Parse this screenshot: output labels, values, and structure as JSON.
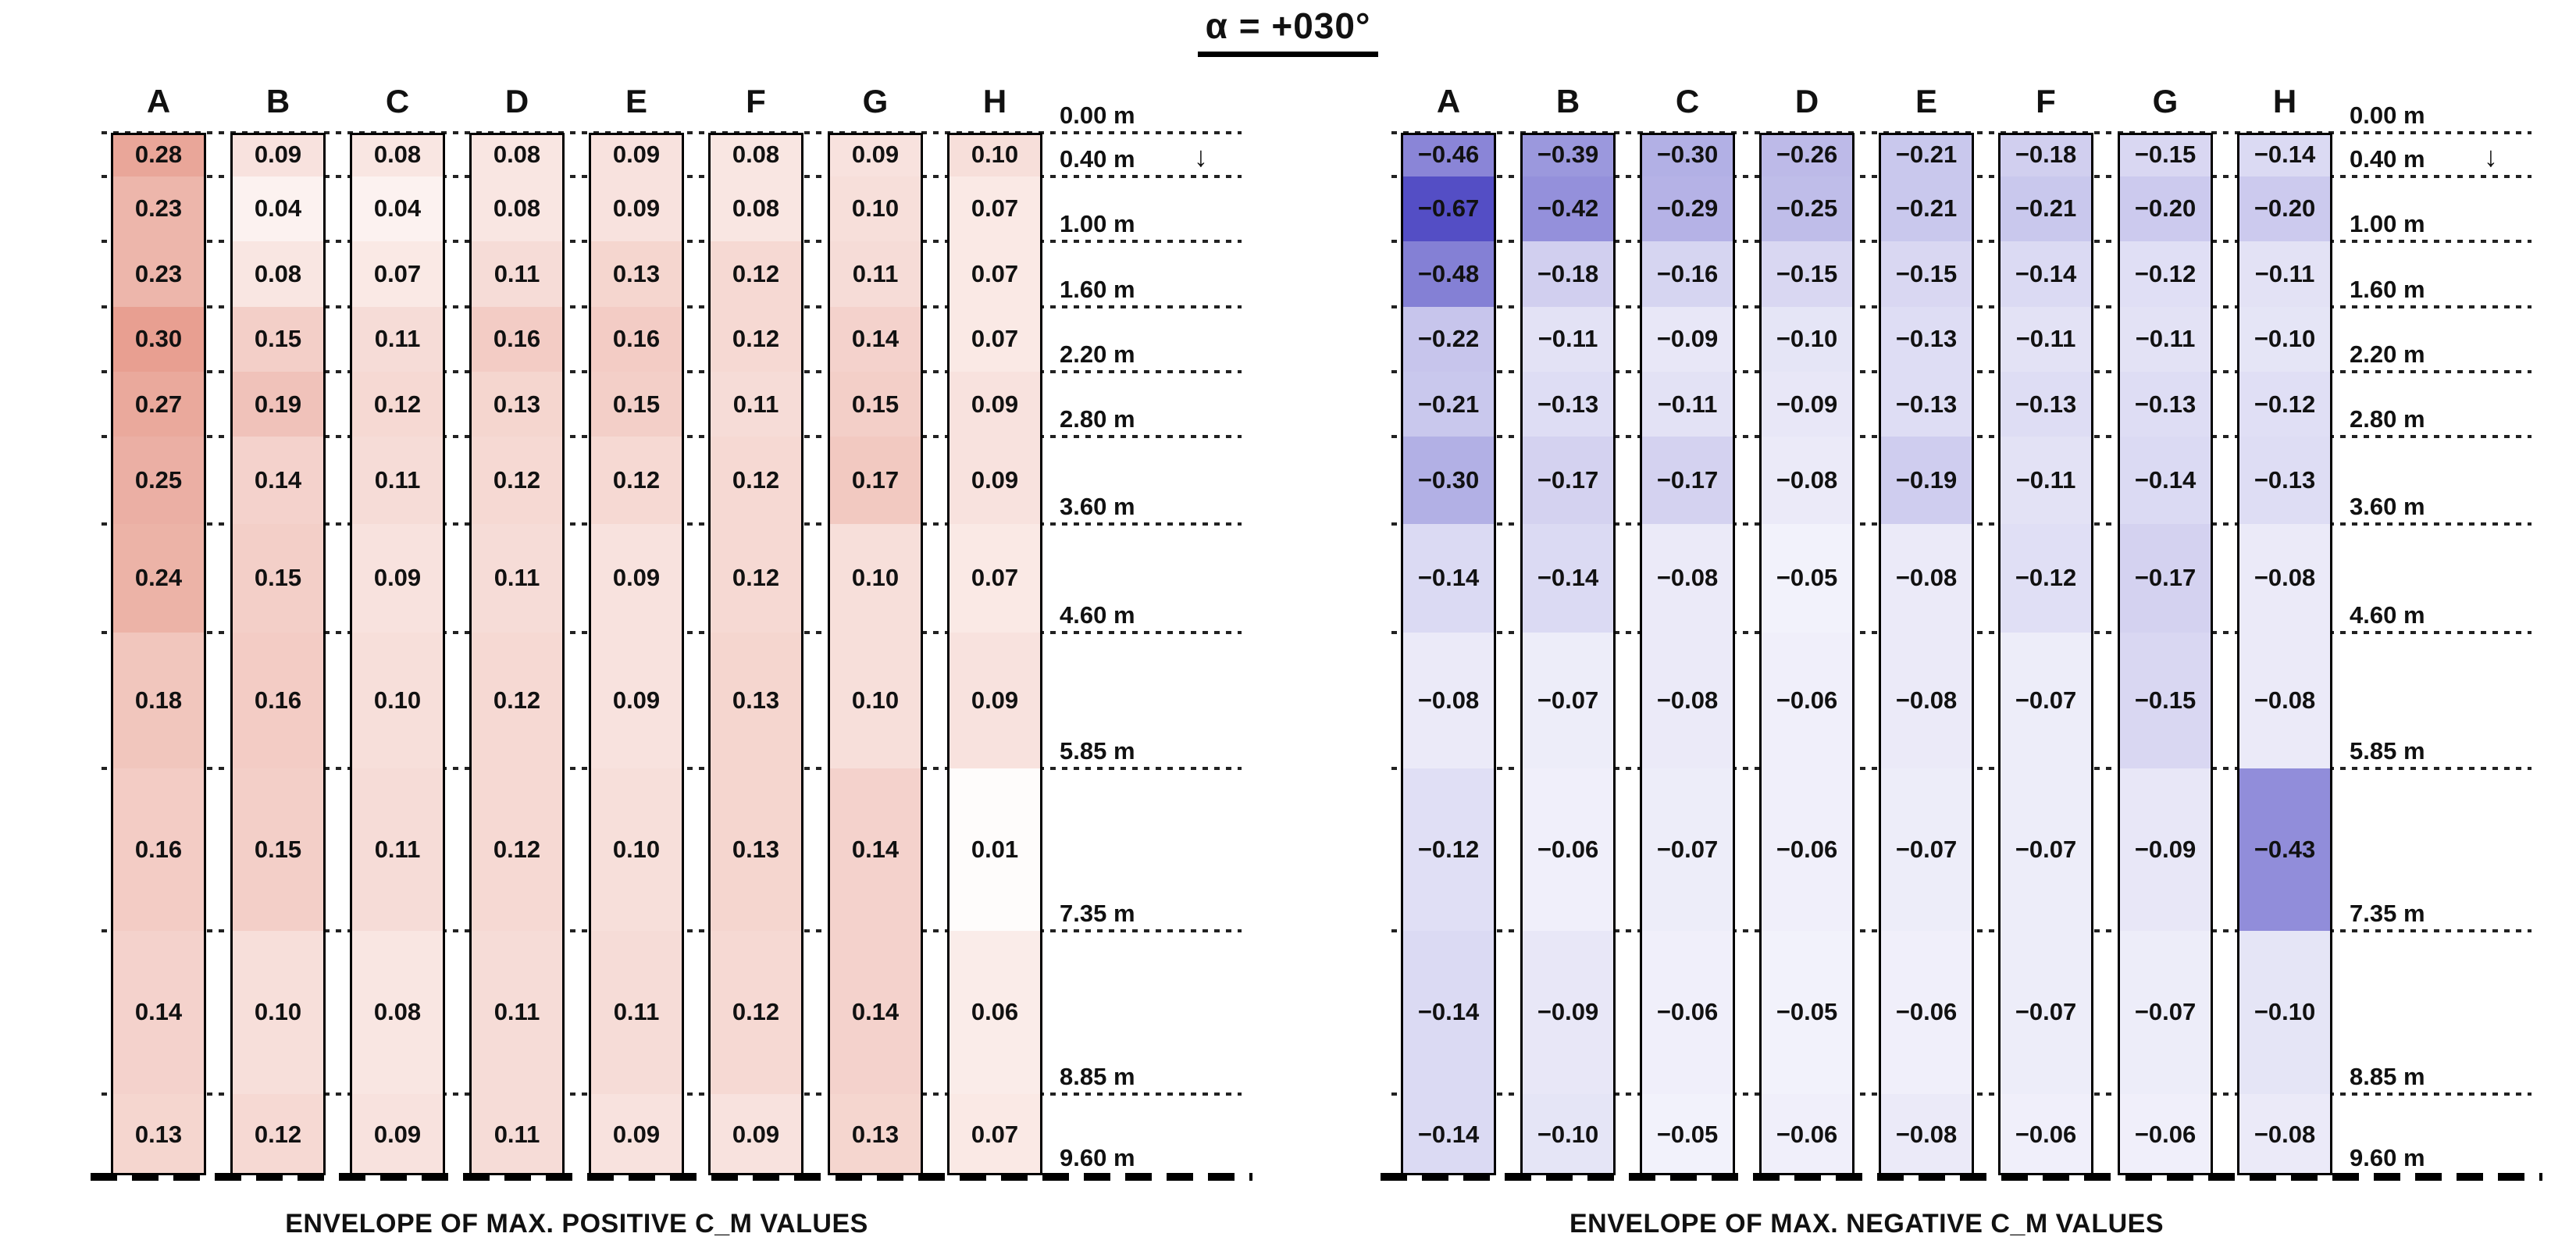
{
  "title": "α = +030°",
  "arrow_icon": "↓",
  "chart_data": [
    {
      "type": "heatmap",
      "id": "positive-envelope",
      "title": "ENVELOPE OF MAX. POSITIVE C_M VALUES",
      "categories": [
        "A",
        "B",
        "C",
        "D",
        "E",
        "F",
        "G",
        "H"
      ],
      "depths_m": [
        0.0,
        0.4,
        1.0,
        1.6,
        2.2,
        2.8,
        3.6,
        4.6,
        5.85,
        7.35,
        8.85,
        9.6
      ],
      "depth_labels": [
        "0.00 m",
        "0.40 m",
        "1.00 m",
        "1.60 m",
        "2.20 m",
        "2.80 m",
        "3.60 m",
        "4.60 m",
        "5.85 m",
        "7.35 m",
        "8.85 m",
        "9.60 m"
      ],
      "color_scale": {
        "max_color": "#e6998a",
        "max_abs_value": 0.32,
        "min_color": "#ffffff"
      },
      "rows": [
        [
          0.28,
          0.09,
          0.08,
          0.08,
          0.09,
          0.08,
          0.09,
          0.1
        ],
        [
          0.23,
          0.04,
          0.04,
          0.08,
          0.09,
          0.08,
          0.1,
          0.07
        ],
        [
          0.23,
          0.08,
          0.07,
          0.11,
          0.13,
          0.12,
          0.11,
          0.07
        ],
        [
          0.3,
          0.15,
          0.11,
          0.16,
          0.16,
          0.12,
          0.14,
          0.07
        ],
        [
          0.27,
          0.19,
          0.12,
          0.13,
          0.15,
          0.11,
          0.15,
          0.09
        ],
        [
          0.25,
          0.14,
          0.11,
          0.12,
          0.12,
          0.12,
          0.17,
          0.09
        ],
        [
          0.24,
          0.15,
          0.09,
          0.11,
          0.09,
          0.12,
          0.1,
          0.07
        ],
        [
          0.18,
          0.16,
          0.1,
          0.12,
          0.09,
          0.13,
          0.1,
          0.09
        ],
        [
          0.16,
          0.15,
          0.11,
          0.12,
          0.1,
          0.13,
          0.14,
          0.01
        ],
        [
          0.14,
          0.1,
          0.08,
          0.11,
          0.11,
          0.12,
          0.14,
          0.06
        ],
        [
          0.13,
          0.12,
          0.09,
          0.11,
          0.09,
          0.09,
          0.13,
          0.07
        ]
      ]
    },
    {
      "type": "heatmap",
      "id": "negative-envelope",
      "title": "ENVELOPE OF MAX. NEGATIVE C_M VALUES",
      "categories": [
        "A",
        "B",
        "C",
        "D",
        "E",
        "F",
        "G",
        "H"
      ],
      "depths_m": [
        0.0,
        0.4,
        1.0,
        1.6,
        2.2,
        2.8,
        3.6,
        4.6,
        5.85,
        7.35,
        8.85,
        9.6
      ],
      "depth_labels": [
        "0.00 m",
        "0.40 m",
        "1.00 m",
        "1.60 m",
        "2.20 m",
        "2.80 m",
        "3.60 m",
        "4.60 m",
        "5.85 m",
        "7.35 m",
        "8.85 m",
        "9.60 m"
      ],
      "color_scale": {
        "max_color": "#544ec5",
        "max_abs_value": 0.67,
        "min_color": "#ffffff"
      },
      "rows": [
        [
          -0.46,
          -0.39,
          -0.3,
          -0.26,
          -0.21,
          -0.18,
          -0.15,
          -0.14
        ],
        [
          -0.67,
          -0.42,
          -0.29,
          -0.25,
          -0.21,
          -0.21,
          -0.2,
          -0.2
        ],
        [
          -0.48,
          -0.18,
          -0.16,
          -0.15,
          -0.15,
          -0.14,
          -0.12,
          -0.11
        ],
        [
          -0.22,
          -0.11,
          -0.09,
          -0.1,
          -0.13,
          -0.11,
          -0.11,
          -0.1
        ],
        [
          -0.21,
          -0.13,
          -0.11,
          -0.09,
          -0.13,
          -0.13,
          -0.13,
          -0.12
        ],
        [
          -0.3,
          -0.17,
          -0.17,
          -0.08,
          -0.19,
          -0.11,
          -0.14,
          -0.13
        ],
        [
          -0.14,
          -0.14,
          -0.08,
          -0.05,
          -0.08,
          -0.12,
          -0.17,
          -0.08
        ],
        [
          -0.08,
          -0.07,
          -0.08,
          -0.06,
          -0.08,
          -0.07,
          -0.15,
          -0.08
        ],
        [
          -0.12,
          -0.06,
          -0.07,
          -0.06,
          -0.07,
          -0.07,
          -0.09,
          -0.43
        ],
        [
          -0.14,
          -0.09,
          -0.06,
          -0.05,
          -0.06,
          -0.07,
          -0.07,
          -0.1
        ],
        [
          -0.14,
          -0.1,
          -0.05,
          -0.06,
          -0.08,
          -0.06,
          -0.06,
          -0.08
        ]
      ]
    }
  ]
}
